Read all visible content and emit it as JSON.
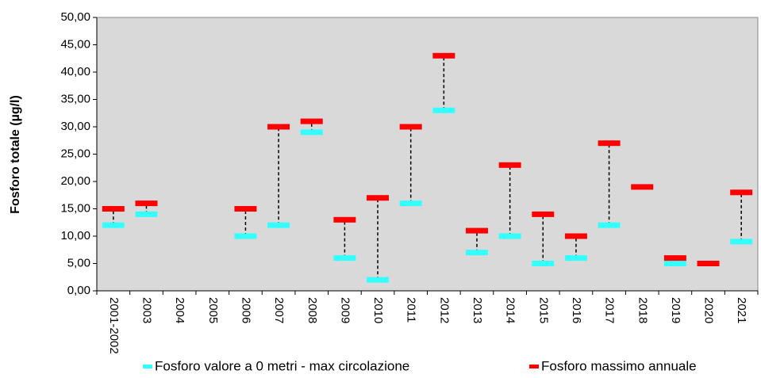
{
  "chart_data": {
    "type": "range_marker",
    "y_label": "Fosforo totale (µg/l)",
    "categories": [
      "2001-2002",
      "2003",
      "2004",
      "2005",
      "2006",
      "2007",
      "2008",
      "2009",
      "2010",
      "2011",
      "2012",
      "2013",
      "2014",
      "2015",
      "2016",
      "2017",
      "2018",
      "2019",
      "2020",
      "2021"
    ],
    "series": [
      {
        "name": "Fosforo valore a 0 metri - max circolazione",
        "color": "#33ffff",
        "values": [
          12,
          14,
          null,
          null,
          10,
          12,
          29,
          6,
          2,
          16,
          33,
          7,
          10,
          5,
          6,
          12,
          null,
          5,
          null,
          9
        ]
      },
      {
        "name": "Fosforo massimo annuale",
        "color": "#ff0000",
        "values": [
          15,
          16,
          null,
          null,
          15,
          30,
          31,
          13,
          17,
          30,
          43,
          11,
          23,
          14,
          10,
          27,
          19,
          6,
          5,
          18
        ]
      }
    ],
    "ylim": [
      0,
      50
    ],
    "yticks": [
      {
        "value": 0,
        "label": "0,00"
      },
      {
        "value": 5,
        "label": "5,00"
      },
      {
        "value": 10,
        "label": "10,00"
      },
      {
        "value": 15,
        "label": "15,00"
      },
      {
        "value": 20,
        "label": "20,00"
      },
      {
        "value": 25,
        "label": "25,00"
      },
      {
        "value": 30,
        "label": "30,00"
      },
      {
        "value": 35,
        "label": "35,00"
      },
      {
        "value": 40,
        "label": "40,00"
      },
      {
        "value": 45,
        "label": "45,00"
      },
      {
        "value": 50,
        "label": "50,00"
      }
    ],
    "connector": true,
    "legend": "bottom"
  }
}
